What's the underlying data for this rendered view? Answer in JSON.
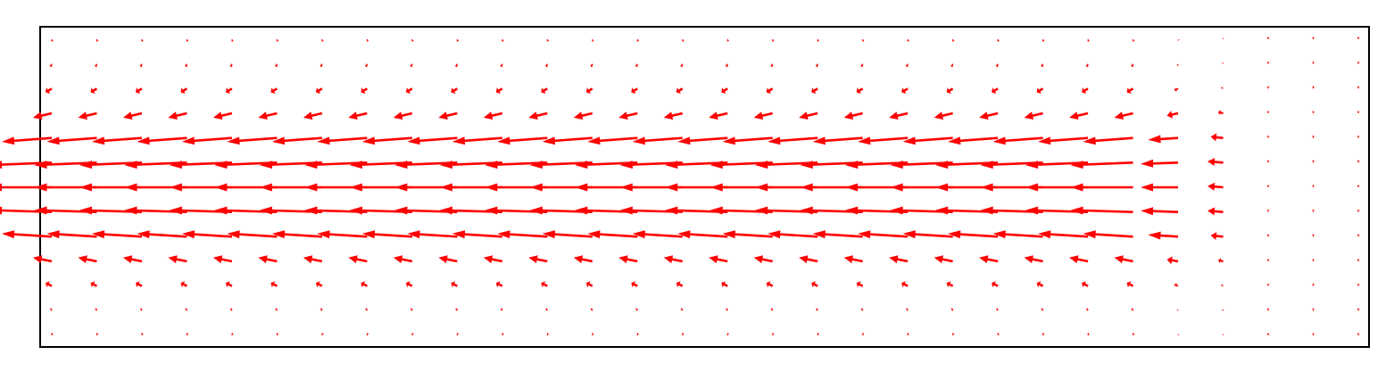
{
  "chart_data": {
    "type": "quiver",
    "color": "#ff0000",
    "u": [
      [
        0.01,
        0.01,
        0.01,
        0.01,
        0.01,
        0.01,
        0.01,
        0.01,
        0.01,
        0.01,
        0.01,
        0.01,
        0.01,
        0.01,
        0.01,
        0.01,
        0.01,
        0.01,
        0.01,
        0.01,
        0.01,
        0.01,
        0.01,
        0.01,
        0.01,
        0.01,
        0,
        0,
        0,
        0
      ],
      [
        -0.02,
        -0.02,
        -0.02,
        -0.02,
        -0.02,
        -0.02,
        -0.02,
        -0.02,
        -0.02,
        -0.02,
        -0.02,
        -0.02,
        -0.02,
        -0.02,
        -0.02,
        -0.02,
        -0.02,
        -0.02,
        -0.02,
        -0.02,
        -0.02,
        -0.02,
        -0.02,
        -0.02,
        -0.02,
        -0.01,
        -0.01,
        0,
        0,
        0
      ],
      [
        -0.1,
        -0.1,
        -0.1,
        -0.1,
        -0.1,
        -0.1,
        -0.1,
        -0.1,
        -0.1,
        -0.1,
        -0.1,
        -0.1,
        -0.1,
        -0.1,
        -0.1,
        -0.1,
        -0.1,
        -0.1,
        -0.1,
        -0.1,
        -0.1,
        -0.1,
        -0.1,
        -0.1,
        -0.1,
        -0.06,
        -0.03,
        0,
        0,
        0
      ],
      [
        -0.3,
        -0.3,
        -0.3,
        -0.3,
        -0.3,
        -0.3,
        -0.3,
        -0.3,
        -0.3,
        -0.3,
        -0.3,
        -0.3,
        -0.3,
        -0.3,
        -0.3,
        -0.3,
        -0.3,
        -0.3,
        -0.3,
        -0.3,
        -0.3,
        -0.3,
        -0.3,
        -0.3,
        -0.3,
        -0.18,
        -0.08,
        0,
        0,
        0
      ],
      [
        -0.8,
        -0.8,
        -0.8,
        -0.8,
        -0.8,
        -0.8,
        -0.8,
        -0.8,
        -0.8,
        -0.8,
        -0.8,
        -0.8,
        -0.8,
        -0.8,
        -0.8,
        -0.8,
        -0.8,
        -0.8,
        -0.8,
        -0.8,
        -0.8,
        -0.8,
        -0.8,
        -0.8,
        -0.8,
        -0.48,
        -0.2,
        0,
        0,
        0
      ],
      [
        -1,
        -1,
        -1,
        -1,
        -1,
        -1,
        -1,
        -1,
        -1,
        -1,
        -1,
        -1,
        -1,
        -1,
        -1,
        -1,
        -1,
        -1,
        -1,
        -1,
        -1,
        -1,
        -1,
        -1,
        -1,
        -0.6,
        -0.25,
        0,
        0,
        0
      ],
      [
        -1,
        -1,
        -1,
        -1,
        -1,
        -1,
        -1,
        -1,
        -1,
        -1,
        -1,
        -1,
        -1,
        -1,
        -1,
        -1,
        -1,
        -1,
        -1,
        -1,
        -1,
        -1,
        -1,
        -1,
        -1,
        -0.6,
        -0.25,
        0,
        0,
        0
      ],
      [
        -1,
        -1,
        -1,
        -1,
        -1,
        -1,
        -1,
        -1,
        -1,
        -1,
        -1,
        -1,
        -1,
        -1,
        -1,
        -1,
        -1,
        -1,
        -1,
        -1,
        -1,
        -1,
        -1,
        -1,
        -1,
        -0.6,
        -0.25,
        0,
        0,
        0
      ],
      [
        -0.8,
        -0.8,
        -0.8,
        -0.8,
        -0.8,
        -0.8,
        -0.8,
        -0.8,
        -0.8,
        -0.8,
        -0.8,
        -0.8,
        -0.8,
        -0.8,
        -0.8,
        -0.8,
        -0.8,
        -0.8,
        -0.8,
        -0.8,
        -0.8,
        -0.8,
        -0.8,
        -0.8,
        -0.8,
        -0.48,
        -0.2,
        0,
        0,
        0
      ],
      [
        -0.3,
        -0.3,
        -0.3,
        -0.3,
        -0.3,
        -0.3,
        -0.3,
        -0.3,
        -0.3,
        -0.3,
        -0.3,
        -0.3,
        -0.3,
        -0.3,
        -0.3,
        -0.3,
        -0.3,
        -0.3,
        -0.3,
        -0.3,
        -0.3,
        -0.3,
        -0.3,
        -0.3,
        -0.3,
        -0.18,
        -0.08,
        0,
        0,
        0
      ],
      [
        -0.1,
        -0.1,
        -0.1,
        -0.1,
        -0.1,
        -0.1,
        -0.1,
        -0.1,
        -0.1,
        -0.1,
        -0.1,
        -0.1,
        -0.1,
        -0.1,
        -0.1,
        -0.1,
        -0.1,
        -0.1,
        -0.1,
        -0.1,
        -0.1,
        -0.1,
        -0.1,
        -0.1,
        -0.1,
        -0.06,
        -0.03,
        0,
        0,
        0
      ],
      [
        -0.02,
        -0.02,
        -0.02,
        -0.02,
        -0.02,
        -0.02,
        -0.02,
        -0.02,
        -0.02,
        -0.02,
        -0.02,
        -0.02,
        -0.02,
        -0.02,
        -0.02,
        -0.02,
        -0.02,
        -0.02,
        -0.02,
        -0.02,
        -0.02,
        -0.02,
        -0.02,
        -0.02,
        -0.02,
        -0.01,
        -0.01,
        0,
        0,
        0
      ],
      [
        0.01,
        0.01,
        0.01,
        0.01,
        0.01,
        0.01,
        0.01,
        0.01,
        0.01,
        0.01,
        0.01,
        0.01,
        0.01,
        0.01,
        0.01,
        0.01,
        0.01,
        0.01,
        0.01,
        0.01,
        0.01,
        0.01,
        0.01,
        0.01,
        0.01,
        0.01,
        0,
        0,
        0,
        0
      ]
    ],
    "v": [
      [
        -0.04,
        -0.04,
        -0.04,
        -0.04,
        -0.04,
        -0.04,
        -0.04,
        -0.04,
        -0.04,
        -0.04,
        -0.04,
        -0.04,
        -0.04,
        -0.04,
        -0.04,
        -0.04,
        -0.04,
        -0.04,
        -0.04,
        -0.04,
        -0.04,
        -0.04,
        -0.04,
        -0.04,
        -0.04,
        -0.02,
        0.02,
        0.04,
        0.04,
        0.04
      ],
      [
        -0.05,
        -0.05,
        -0.05,
        -0.05,
        -0.05,
        -0.05,
        -0.05,
        -0.05,
        -0.05,
        -0.05,
        -0.05,
        -0.05,
        -0.05,
        -0.05,
        -0.05,
        -0.05,
        -0.05,
        -0.05,
        -0.05,
        -0.05,
        -0.05,
        -0.05,
        -0.05,
        -0.05,
        -0.05,
        -0.03,
        0.02,
        0.04,
        0.04,
        0.04
      ],
      [
        -0.06,
        -0.06,
        -0.06,
        -0.06,
        -0.06,
        -0.06,
        -0.06,
        -0.06,
        -0.06,
        -0.06,
        -0.06,
        -0.06,
        -0.06,
        -0.06,
        -0.06,
        -0.06,
        -0.06,
        -0.06,
        -0.06,
        -0.06,
        -0.06,
        -0.06,
        -0.06,
        -0.06,
        -0.06,
        -0.03,
        0.02,
        0.04,
        0.04,
        0.04
      ],
      [
        -0.07,
        -0.07,
        -0.07,
        -0.07,
        -0.07,
        -0.07,
        -0.07,
        -0.07,
        -0.07,
        -0.07,
        -0.07,
        -0.07,
        -0.07,
        -0.07,
        -0.07,
        -0.07,
        -0.07,
        -0.07,
        -0.07,
        -0.07,
        -0.07,
        -0.07,
        -0.07,
        -0.07,
        -0.07,
        -0.04,
        0.02,
        0.04,
        0.04,
        0.04
      ],
      [
        -0.06,
        -0.06,
        -0.06,
        -0.06,
        -0.06,
        -0.06,
        -0.06,
        -0.06,
        -0.06,
        -0.06,
        -0.06,
        -0.06,
        -0.06,
        -0.06,
        -0.06,
        -0.06,
        -0.06,
        -0.06,
        -0.06,
        -0.06,
        -0.06,
        -0.06,
        -0.06,
        -0.06,
        -0.06,
        -0.03,
        0.02,
        0.04,
        0.04,
        0.04
      ],
      [
        -0.04,
        -0.04,
        -0.04,
        -0.04,
        -0.04,
        -0.04,
        -0.04,
        -0.04,
        -0.04,
        -0.04,
        -0.04,
        -0.04,
        -0.04,
        -0.04,
        -0.04,
        -0.04,
        -0.04,
        -0.04,
        -0.04,
        -0.04,
        -0.04,
        -0.04,
        -0.04,
        -0.04,
        -0.04,
        -0.02,
        0.02,
        0.04,
        0.04,
        0.04
      ],
      [
        0,
        0,
        0,
        0,
        0,
        0,
        0,
        0,
        0,
        0,
        0,
        0,
        0,
        0,
        0,
        0,
        0,
        0,
        0,
        0,
        0,
        0,
        0,
        0,
        0,
        0,
        0.02,
        0.04,
        0.04,
        0.04
      ],
      [
        0.03,
        0.03,
        0.03,
        0.03,
        0.03,
        0.03,
        0.03,
        0.03,
        0.03,
        0.03,
        0.03,
        0.03,
        0.03,
        0.03,
        0.03,
        0.03,
        0.03,
        0.03,
        0.03,
        0.03,
        0.03,
        0.03,
        0.03,
        0.03,
        0.03,
        0.02,
        0.02,
        0.04,
        0.04,
        0.04
      ],
      [
        0.05,
        0.05,
        0.05,
        0.05,
        0.05,
        0.05,
        0.05,
        0.05,
        0.05,
        0.05,
        0.05,
        0.05,
        0.05,
        0.05,
        0.05,
        0.05,
        0.05,
        0.05,
        0.05,
        0.05,
        0.05,
        0.05,
        0.05,
        0.05,
        0.05,
        0.03,
        0.02,
        0.04,
        0.04,
        0.04
      ],
      [
        0.06,
        0.06,
        0.06,
        0.06,
        0.06,
        0.06,
        0.06,
        0.06,
        0.06,
        0.06,
        0.06,
        0.06,
        0.06,
        0.06,
        0.06,
        0.06,
        0.06,
        0.06,
        0.06,
        0.06,
        0.06,
        0.06,
        0.06,
        0.06,
        0.06,
        0.03,
        0.02,
        0.04,
        0.04,
        0.04
      ],
      [
        0.05,
        0.05,
        0.05,
        0.05,
        0.05,
        0.05,
        0.05,
        0.05,
        0.05,
        0.05,
        0.05,
        0.05,
        0.05,
        0.05,
        0.05,
        0.05,
        0.05,
        0.05,
        0.05,
        0.05,
        0.05,
        0.05,
        0.05,
        0.05,
        0.05,
        0.03,
        0.02,
        0.04,
        0.04,
        0.04
      ],
      [
        0.04,
        0.04,
        0.04,
        0.04,
        0.04,
        0.04,
        0.04,
        0.04,
        0.04,
        0.04,
        0.04,
        0.04,
        0.04,
        0.04,
        0.04,
        0.04,
        0.04,
        0.04,
        0.04,
        0.04,
        0.04,
        0.04,
        0.04,
        0.04,
        0.04,
        0.02,
        0.02,
        0.04,
        0.04,
        0.04
      ],
      [
        0.04,
        0.04,
        0.04,
        0.04,
        0.04,
        0.04,
        0.04,
        0.04,
        0.04,
        0.04,
        0.04,
        0.04,
        0.04,
        0.04,
        0.04,
        0.04,
        0.04,
        0.04,
        0.04,
        0.04,
        0.04,
        0.04,
        0.04,
        0.04,
        0.04,
        0.02,
        0.02,
        0.04,
        0.04,
        0.04
      ]
    ]
  }
}
